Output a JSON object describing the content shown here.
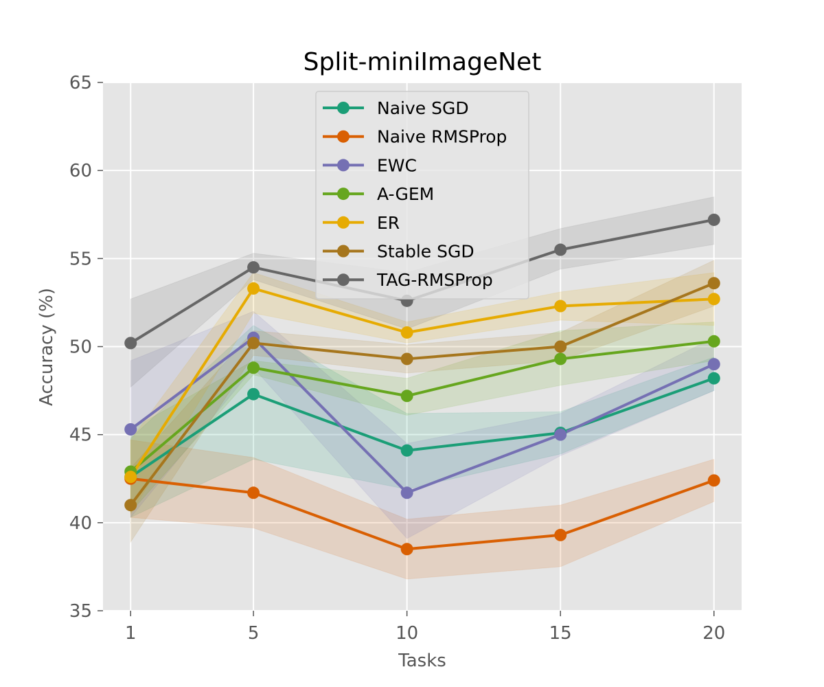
{
  "chart_data": {
    "type": "line",
    "title": "Split-miniImageNet",
    "xlabel": "Tasks",
    "ylabel": "Accuracy (%)",
    "x": [
      1,
      5,
      10,
      15,
      20
    ],
    "xlim": [
      0.1,
      20.9
    ],
    "ylim": [
      35,
      65
    ],
    "xticks": [
      "1",
      "5",
      "10",
      "15",
      "20"
    ],
    "yticks": [
      "35",
      "40",
      "45",
      "50",
      "55",
      "60",
      "65"
    ],
    "grid": true,
    "legend_position": "top-center",
    "series": [
      {
        "name": "Naive SGD",
        "color": "#1b9e77",
        "values": [
          42.6,
          47.3,
          44.1,
          45.1,
          48.2
        ],
        "lower": [
          40.3,
          43.6,
          41.9,
          43.9,
          47.5
        ],
        "upper": [
          44.8,
          51.2,
          46.2,
          46.3,
          49.4
        ]
      },
      {
        "name": "Naive RMSProp",
        "color": "#d95f02",
        "values": [
          42.5,
          41.7,
          38.5,
          39.3,
          42.4
        ],
        "lower": [
          40.3,
          39.7,
          36.8,
          37.5,
          41.2
        ],
        "upper": [
          44.7,
          43.7,
          40.2,
          41.0,
          43.6
        ]
      },
      {
        "name": "EWC",
        "color": "#7570b3",
        "values": [
          45.3,
          50.5,
          41.7,
          45.0,
          49.0
        ],
        "lower": [
          40.3,
          48.8,
          39.1,
          43.8,
          47.5
        ],
        "upper": [
          49.2,
          52.0,
          44.5,
          46.2,
          50.5
        ]
      },
      {
        "name": "A-GEM",
        "color": "#66a61e",
        "values": [
          42.9,
          48.8,
          47.2,
          49.3,
          50.3
        ],
        "lower": [
          40.6,
          48.4,
          46.1,
          47.8,
          49.2
        ],
        "upper": [
          45.3,
          49.2,
          48.2,
          50.9,
          51.4
        ]
      },
      {
        "name": "ER",
        "color": "#e6ab02",
        "values": [
          42.6,
          53.3,
          50.8,
          52.3,
          52.7
        ],
        "lower": [
          40.5,
          51.9,
          50.2,
          51.5,
          51.2
        ],
        "upper": [
          44.7,
          54.2,
          51.4,
          53.1,
          54.2
        ]
      },
      {
        "name": "Stable SGD",
        "color": "#a6761d",
        "values": [
          41.0,
          50.2,
          49.3,
          50.0,
          53.6
        ],
        "lower": [
          38.9,
          49.5,
          48.5,
          49.2,
          52.3
        ],
        "upper": [
          43.1,
          50.9,
          50.1,
          50.8,
          54.9
        ]
      },
      {
        "name": "TAG-RMSProp",
        "color": "#666666",
        "values": [
          50.2,
          54.5,
          52.6,
          55.5,
          57.2
        ],
        "lower": [
          47.7,
          53.8,
          51.0,
          54.4,
          55.8
        ],
        "upper": [
          52.7,
          55.3,
          54.2,
          56.7,
          58.5
        ]
      }
    ]
  }
}
